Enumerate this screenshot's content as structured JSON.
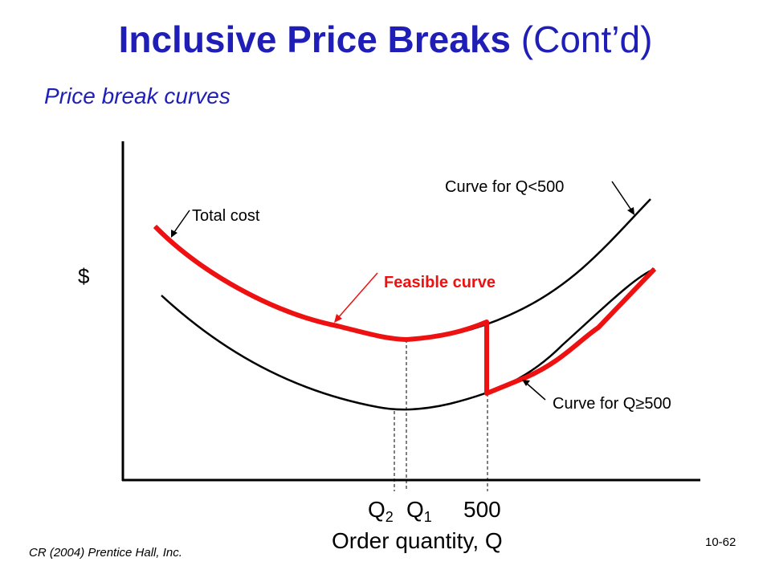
{
  "slide": {
    "title_bold": "Inclusive Price Breaks",
    "title_rest": "(Cont’d)",
    "subtitle": "Price break curves",
    "footer": "CR (2004) Prentice Hall, Inc.",
    "slide_number": "10-62"
  },
  "diagram": {
    "y_axis_label": "$",
    "x_axis_label": "Order quantity, Q",
    "x_ticks": {
      "q2": "Q",
      "q2_sub": "2",
      "q1": "Q",
      "q1_sub": "1",
      "break": "500"
    },
    "annotations": {
      "total_cost": "Total cost",
      "feasible_curve": "Feasible curve",
      "curve_lt_500": "Curve for Q<500",
      "curve_ge_500": "Curve for Q≥500"
    },
    "colors": {
      "feasible": "#ee1111",
      "curves": "#000000",
      "title": "#1f1fb8"
    }
  }
}
